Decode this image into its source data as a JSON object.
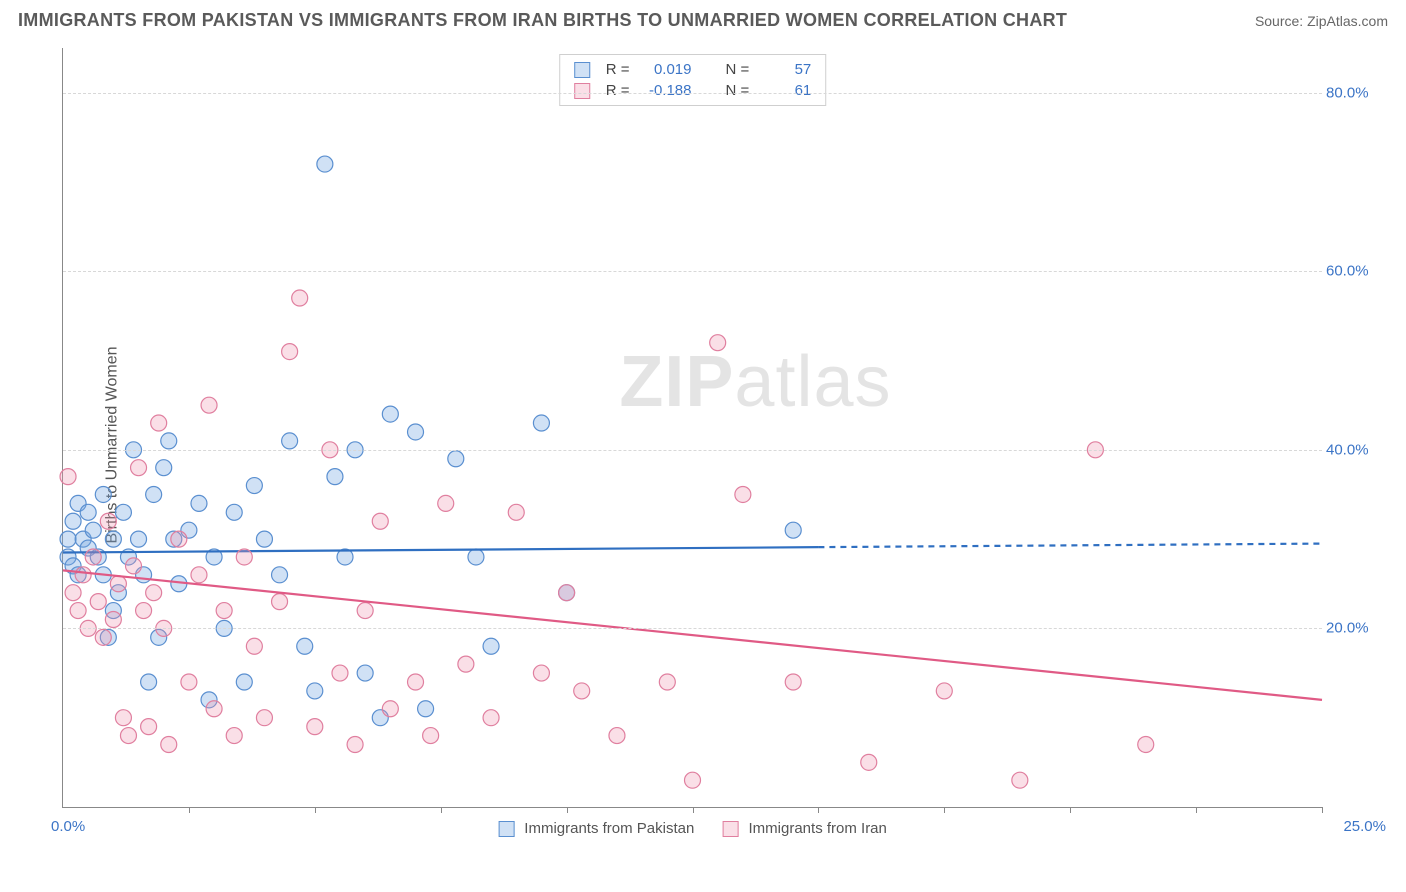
{
  "header": {
    "title": "IMMIGRANTS FROM PAKISTAN VS IMMIGRANTS FROM IRAN BIRTHS TO UNMARRIED WOMEN CORRELATION CHART",
    "source": "Source: ZipAtlas.com"
  },
  "ylabel": "Births to Unmarried Women",
  "watermark_a": "ZIP",
  "watermark_b": "atlas",
  "chart": {
    "type": "scatter",
    "background_color": "#ffffff",
    "grid_color": "#d8d8d8",
    "axis_color": "#888888",
    "tick_label_color": "#3b74c6",
    "xlim": [
      0,
      25
    ],
    "ylim": [
      0,
      85
    ],
    "yticks": [
      {
        "v": 20,
        "label": "20.0%"
      },
      {
        "v": 40,
        "label": "40.0%"
      },
      {
        "v": 60,
        "label": "60.0%"
      },
      {
        "v": 80,
        "label": "80.0%"
      }
    ],
    "xtick_positions": [
      2.5,
      5,
      7.5,
      10,
      12.5,
      15,
      17.5,
      20,
      22.5,
      25
    ],
    "x_first_label": "0.0%",
    "x_last_label": "25.0%",
    "marker_radius": 8,
    "marker_stroke_width": 1.2,
    "line_width": 2.2,
    "series": [
      {
        "name": "Immigrants from Pakistan",
        "fill": "rgba(120,170,225,0.35)",
        "stroke": "#5a8fd0",
        "line_color": "#2f6fc1",
        "trend": {
          "y_at_x0": 28.5,
          "y_at_xmax": 29.5,
          "solid_until_x": 15
        },
        "stats": {
          "R": "0.019",
          "N": "57"
        },
        "points": [
          [
            0.1,
            28
          ],
          [
            0.1,
            30
          ],
          [
            0.2,
            32
          ],
          [
            0.2,
            27
          ],
          [
            0.3,
            26
          ],
          [
            0.3,
            34
          ],
          [
            0.4,
            30
          ],
          [
            0.5,
            29
          ],
          [
            0.5,
            33
          ],
          [
            0.6,
            31
          ],
          [
            0.7,
            28
          ],
          [
            0.8,
            35
          ],
          [
            0.8,
            26
          ],
          [
            0.9,
            19
          ],
          [
            1.0,
            30
          ],
          [
            1.0,
            22
          ],
          [
            1.1,
            24
          ],
          [
            1.2,
            33
          ],
          [
            1.3,
            28
          ],
          [
            1.4,
            40
          ],
          [
            1.5,
            30
          ],
          [
            1.6,
            26
          ],
          [
            1.7,
            14
          ],
          [
            1.8,
            35
          ],
          [
            1.9,
            19
          ],
          [
            2.0,
            38
          ],
          [
            2.1,
            41
          ],
          [
            2.2,
            30
          ],
          [
            2.3,
            25
          ],
          [
            2.5,
            31
          ],
          [
            2.7,
            34
          ],
          [
            2.9,
            12
          ],
          [
            3.0,
            28
          ],
          [
            3.2,
            20
          ],
          [
            3.4,
            33
          ],
          [
            3.6,
            14
          ],
          [
            3.8,
            36
          ],
          [
            4.0,
            30
          ],
          [
            4.3,
            26
          ],
          [
            4.5,
            41
          ],
          [
            4.8,
            18
          ],
          [
            5.0,
            13
          ],
          [
            5.2,
            72
          ],
          [
            5.4,
            37
          ],
          [
            5.6,
            28
          ],
          [
            5.8,
            40
          ],
          [
            6.0,
            15
          ],
          [
            6.3,
            10
          ],
          [
            6.5,
            44
          ],
          [
            7.0,
            42
          ],
          [
            7.2,
            11
          ],
          [
            7.8,
            39
          ],
          [
            8.2,
            28
          ],
          [
            8.5,
            18
          ],
          [
            9.5,
            43
          ],
          [
            10.0,
            24
          ],
          [
            14.5,
            31
          ]
        ]
      },
      {
        "name": "Immigrants from Iran",
        "fill": "rgba(240,150,175,0.30)",
        "stroke": "#e07f9f",
        "line_color": "#e05a85",
        "trend": {
          "y_at_x0": 26.5,
          "y_at_xmax": 12.0,
          "solid_until_x": 25
        },
        "stats": {
          "R": "-0.188",
          "N": "61"
        },
        "points": [
          [
            0.1,
            37
          ],
          [
            0.2,
            24
          ],
          [
            0.3,
            22
          ],
          [
            0.4,
            26
          ],
          [
            0.5,
            20
          ],
          [
            0.6,
            28
          ],
          [
            0.7,
            23
          ],
          [
            0.8,
            19
          ],
          [
            0.9,
            32
          ],
          [
            1.0,
            21
          ],
          [
            1.1,
            25
          ],
          [
            1.2,
            10
          ],
          [
            1.3,
            8
          ],
          [
            1.4,
            27
          ],
          [
            1.5,
            38
          ],
          [
            1.6,
            22
          ],
          [
            1.7,
            9
          ],
          [
            1.8,
            24
          ],
          [
            1.9,
            43
          ],
          [
            2.0,
            20
          ],
          [
            2.1,
            7
          ],
          [
            2.3,
            30
          ],
          [
            2.5,
            14
          ],
          [
            2.7,
            26
          ],
          [
            2.9,
            45
          ],
          [
            3.0,
            11
          ],
          [
            3.2,
            22
          ],
          [
            3.4,
            8
          ],
          [
            3.6,
            28
          ],
          [
            3.8,
            18
          ],
          [
            4.0,
            10
          ],
          [
            4.3,
            23
          ],
          [
            4.5,
            51
          ],
          [
            4.7,
            57
          ],
          [
            5.0,
            9
          ],
          [
            5.3,
            40
          ],
          [
            5.5,
            15
          ],
          [
            5.8,
            7
          ],
          [
            6.0,
            22
          ],
          [
            6.3,
            32
          ],
          [
            6.5,
            11
          ],
          [
            7.0,
            14
          ],
          [
            7.3,
            8
          ],
          [
            7.6,
            34
          ],
          [
            8.0,
            16
          ],
          [
            8.5,
            10
          ],
          [
            9.0,
            33
          ],
          [
            9.5,
            15
          ],
          [
            10.0,
            24
          ],
          [
            10.3,
            13
          ],
          [
            11.0,
            8
          ],
          [
            12.0,
            14
          ],
          [
            12.5,
            3
          ],
          [
            13.0,
            52
          ],
          [
            13.5,
            35
          ],
          [
            14.5,
            14
          ],
          [
            16.0,
            5
          ],
          [
            17.5,
            13
          ],
          [
            19.0,
            3
          ],
          [
            20.5,
            40
          ],
          [
            21.5,
            7
          ]
        ]
      }
    ]
  },
  "legend_labels": {
    "R": "R  =",
    "N": "N  ="
  },
  "footer": {
    "s1": "Immigrants from Pakistan",
    "s2": "Immigrants from Iran"
  }
}
